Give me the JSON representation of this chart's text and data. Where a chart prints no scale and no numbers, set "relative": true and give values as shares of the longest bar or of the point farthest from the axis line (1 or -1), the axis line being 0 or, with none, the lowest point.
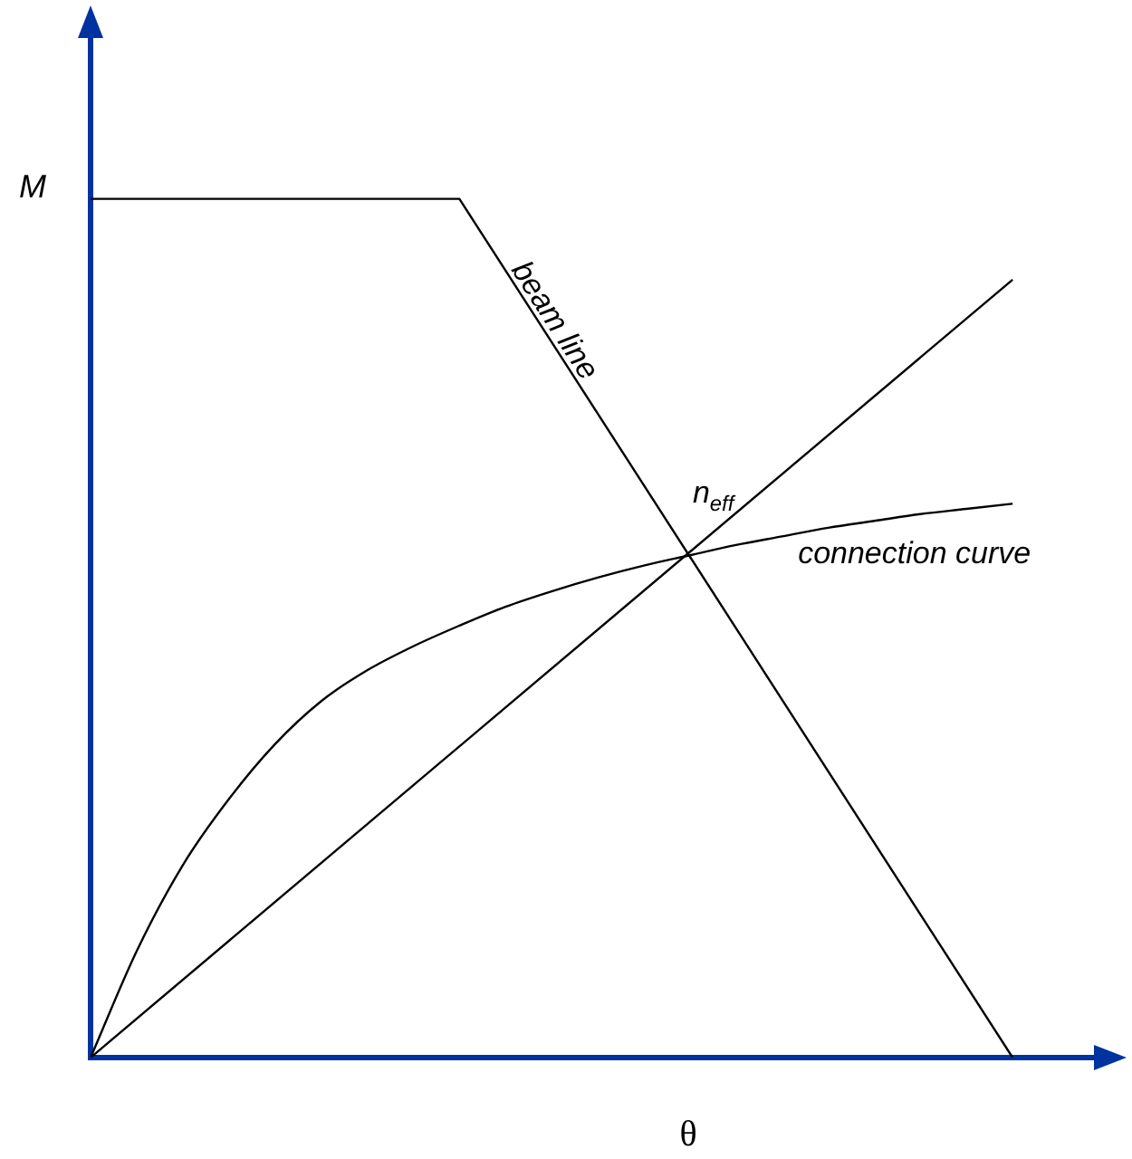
{
  "chart_data": {
    "type": "line",
    "relative": true,
    "xlabel": "θ",
    "ylabel": "M",
    "legend": false,
    "grid": false,
    "tick_labels": false,
    "marker": "none",
    "line_style": "solid",
    "categories": [
      null,
      null,
      null,
      null,
      null,
      null,
      null,
      null,
      null,
      null,
      null,
      null,
      null,
      null,
      null,
      null,
      null,
      null,
      null,
      null,
      null
    ],
    "series": [
      {
        "name": "beam line",
        "color": "#000000",
        "values": [
          1,
          null,
          null,
          null,
          null,
          null,
          null,
          null,
          1,
          null,
          null,
          null,
          null,
          null,
          null,
          null,
          null,
          null,
          null,
          null,
          0
        ]
      },
      {
        "color": "#000000",
        "values": [
          0,
          null,
          null,
          null,
          null,
          null,
          null,
          null,
          null,
          null,
          null,
          null,
          null,
          null,
          null,
          null,
          null,
          null,
          null,
          null,
          0.906
        ]
      },
      {
        "name": "connection curve",
        "color": "#000000",
        "values": [
          0,
          0.124,
          0.224,
          0.301,
          0.365,
          0.415,
          0.451,
          0.479,
          0.503,
          0.525,
          0.543,
          0.559,
          0.573,
          0.585,
          0.597,
          0.607,
          0.617,
          0.625,
          0.633,
          0.639,
          0.645
        ]
      }
    ],
    "annotations": [
      "n$_{eff}$"
    ]
  }
}
